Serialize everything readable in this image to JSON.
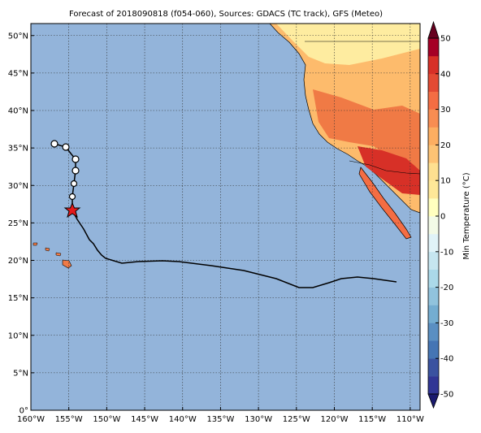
{
  "chart_data": {
    "type": "map",
    "title": "Forecast of 2018090818 (f054-060), Sources: GDACS (TC track), GFS (Meteo)",
    "xlim": [
      -160,
      -108.7
    ],
    "ylim": [
      0,
      51.6
    ],
    "xticks": [
      {
        "value": -160,
        "label": "160°W"
      },
      {
        "value": -155,
        "label": "155°W"
      },
      {
        "value": -150,
        "label": "150°W"
      },
      {
        "value": -145,
        "label": "145°W"
      },
      {
        "value": -140,
        "label": "140°W"
      },
      {
        "value": -135,
        "label": "135°W"
      },
      {
        "value": -130,
        "label": "130°W"
      },
      {
        "value": -125,
        "label": "125°W"
      },
      {
        "value": -120,
        "label": "120°W"
      },
      {
        "value": -115,
        "label": "115°W"
      },
      {
        "value": -110,
        "label": "110°W"
      }
    ],
    "yticks": [
      {
        "value": 0,
        "label": "0°"
      },
      {
        "value": 5,
        "label": "5°N"
      },
      {
        "value": 10,
        "label": "10°N"
      },
      {
        "value": 15,
        "label": "15°N"
      },
      {
        "value": 20,
        "label": "20°N"
      },
      {
        "value": 25,
        "label": "25°N"
      },
      {
        "value": 30,
        "label": "30°N"
      },
      {
        "value": 35,
        "label": "35°N"
      },
      {
        "value": 40,
        "label": "40°N"
      },
      {
        "value": 45,
        "label": "45°N"
      },
      {
        "value": 50,
        "label": "50°N"
      }
    ],
    "grid": true,
    "colorbar": {
      "label": "Min Temperature (°C)",
      "lim": [
        -50,
        50
      ],
      "ticks": [
        -50,
        -40,
        -30,
        -20,
        -10,
        0,
        10,
        20,
        30,
        40,
        50
      ],
      "colors": [
        "#313695",
        "#3a52a0",
        "#4575b4",
        "#5a8fc2",
        "#74add1",
        "#91c3dd",
        "#abd9e9",
        "#c6e6f0",
        "#e0f3f8",
        "#f2fae6",
        "#ffffbf",
        "#fee898",
        "#fee090",
        "#fdc374",
        "#fdae61",
        "#f88d52",
        "#f46d43",
        "#e34a33",
        "#d73027",
        "#a50026"
      ]
    }
  }
}
